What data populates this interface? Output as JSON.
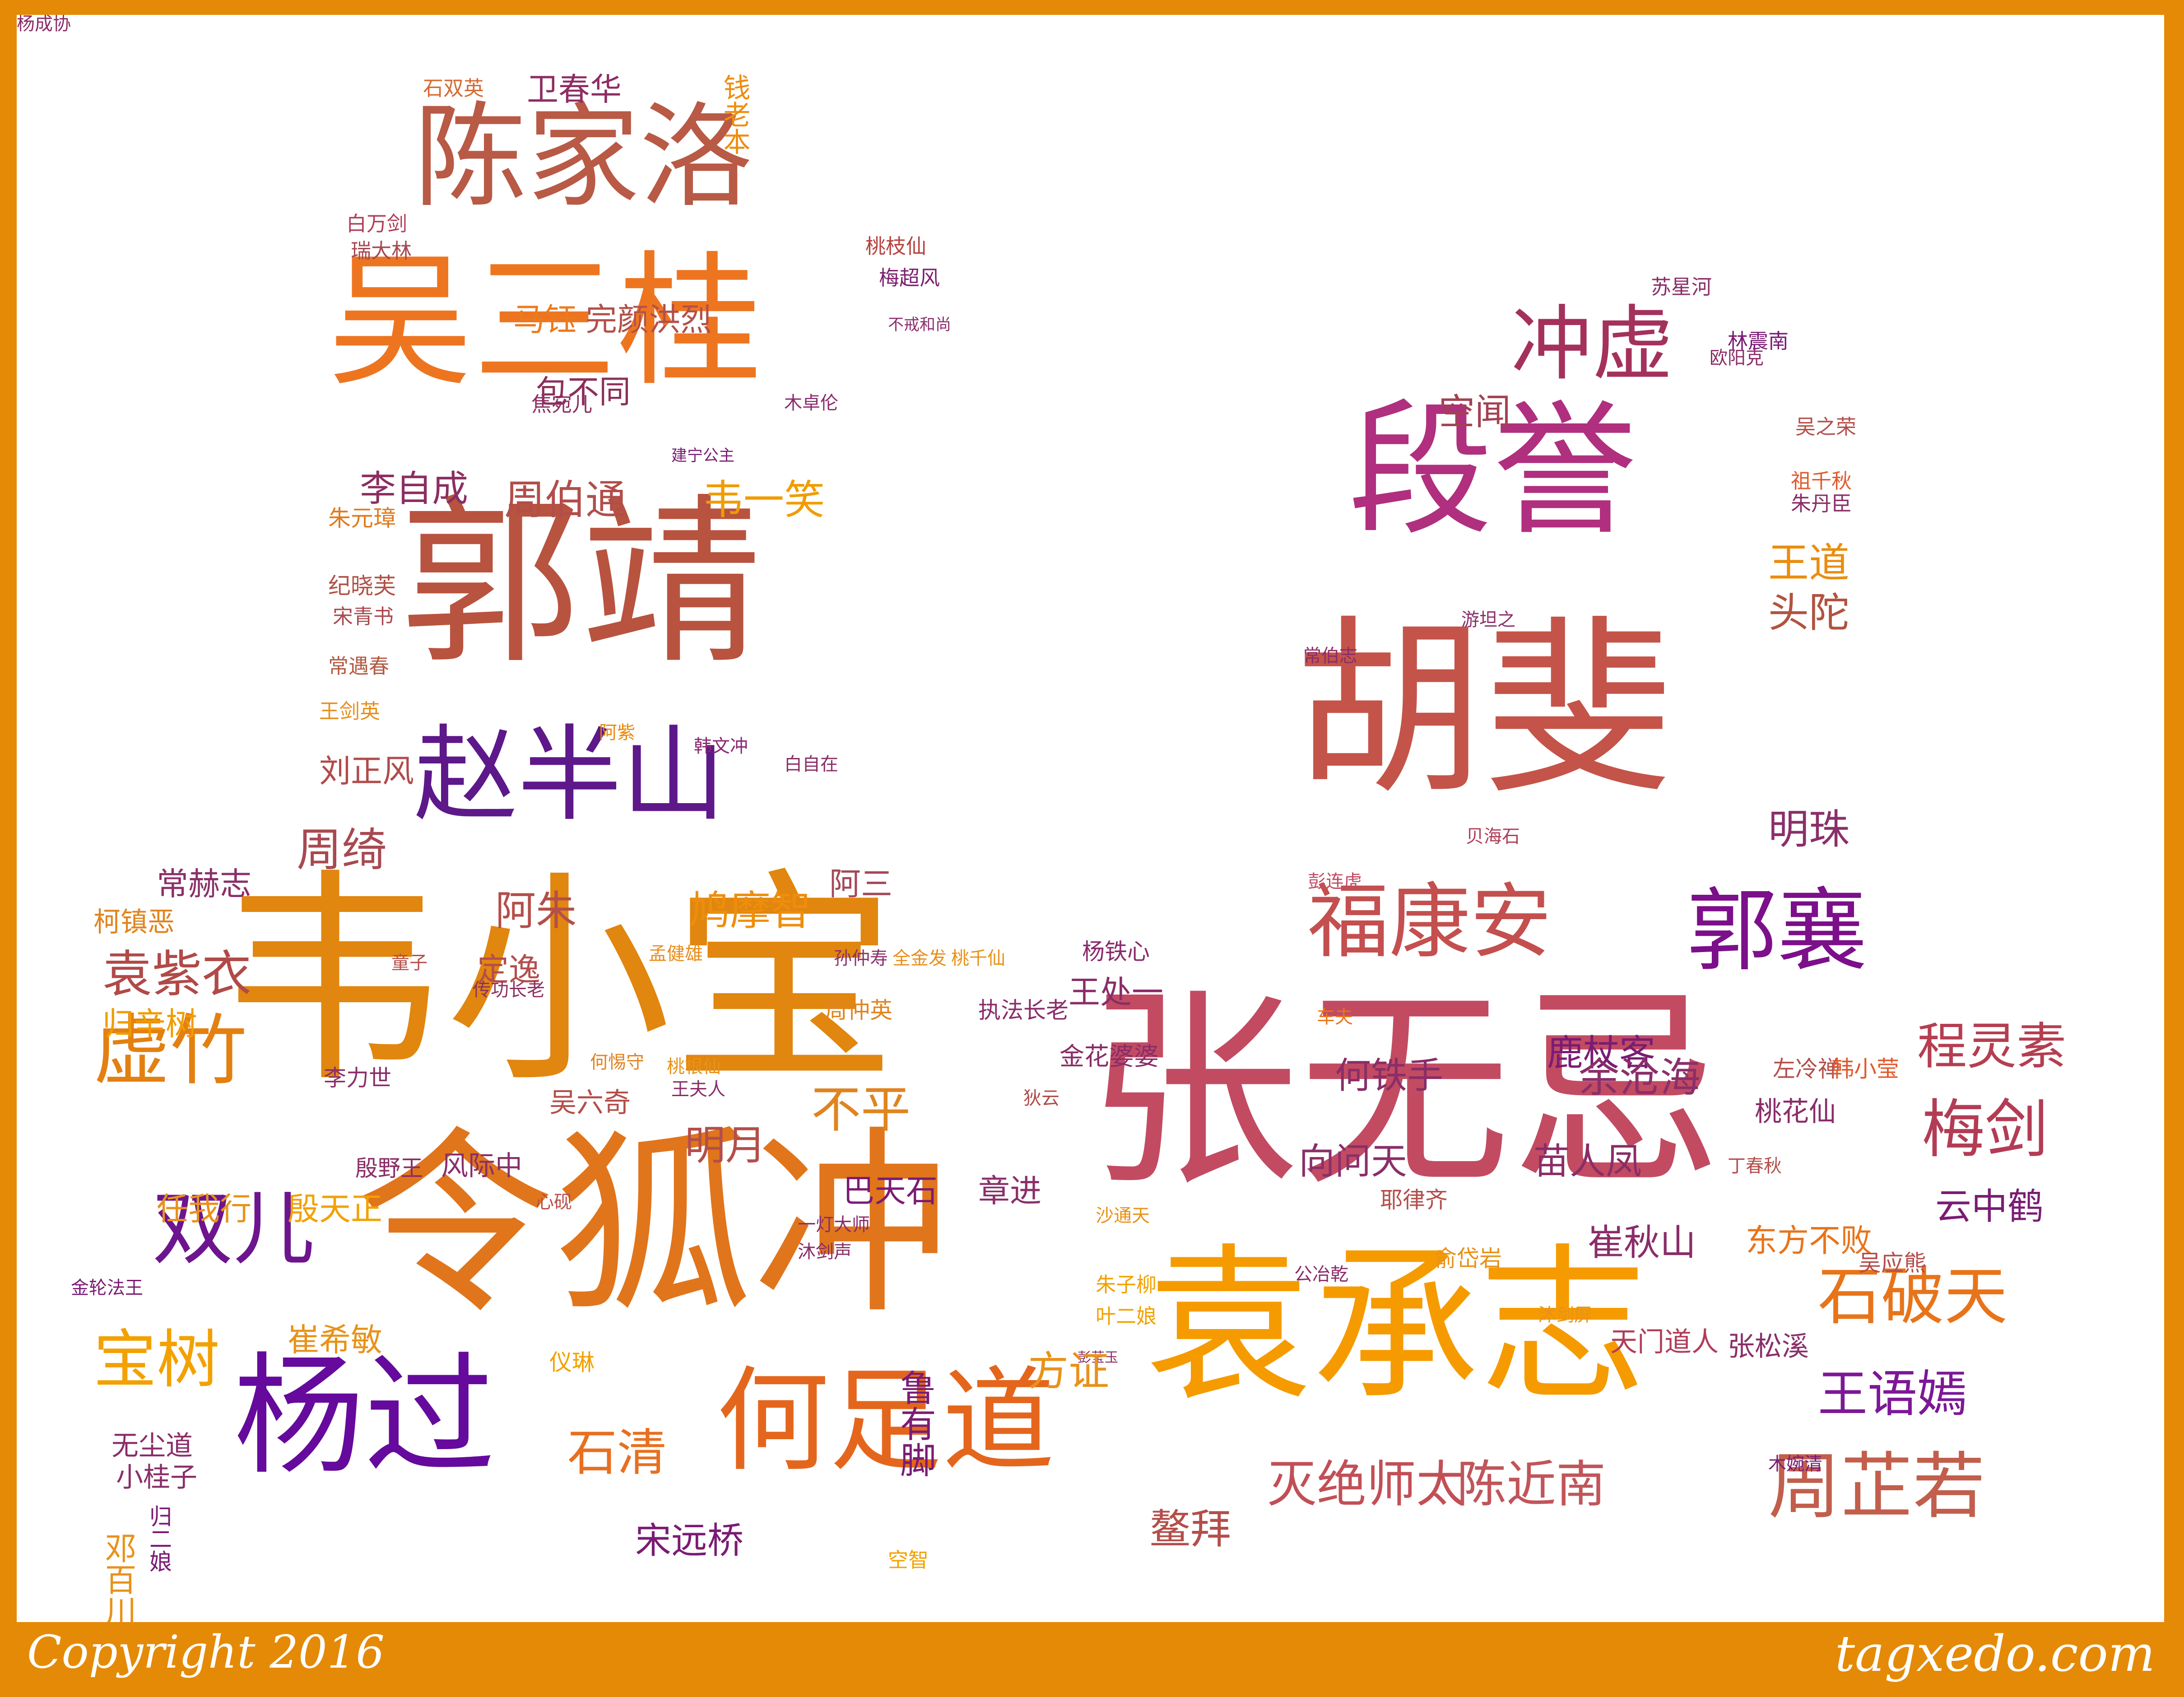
{
  "colors": {
    "frame": "#E48A07",
    "canvas": "#FFFFFF",
    "footer_text": "#FFFFFF"
  },
  "footer": {
    "copyright": "Copyright 2016",
    "brand": "tagxedo.com"
  },
  "words": [
    {
      "text": "韦小宝",
      "color": "#E1860E"
    },
    {
      "text": "张无忌",
      "color": "#C24B62"
    },
    {
      "text": "令狐冲",
      "color": "#E0751C"
    },
    {
      "text": "袁承志",
      "color": "#F59B00"
    },
    {
      "text": "胡斐",
      "color": "#C45449"
    },
    {
      "text": "郭靖",
      "color": "#B8533F"
    },
    {
      "text": "吴三桂",
      "color": "#EE7520"
    },
    {
      "text": "段誉",
      "color": "#B02F7E"
    },
    {
      "text": "陈家洛",
      "color": "#B85A45"
    },
    {
      "text": "杨过",
      "color": "#650A9C"
    },
    {
      "text": "何足道",
      "color": "#E4661D"
    },
    {
      "text": "赵半山",
      "color": "#5D188A"
    },
    {
      "text": "福康安",
      "color": "#C44F4F"
    },
    {
      "text": "郭襄",
      "color": "#7C0F8A"
    },
    {
      "text": "冲虚",
      "color": "#A4315C"
    },
    {
      "text": "双儿",
      "color": "#6D158E"
    },
    {
      "text": "虚竹",
      "color": "#E38011"
    },
    {
      "text": "周芷若",
      "color": "#C25E4C"
    },
    {
      "text": "石破天",
      "color": "#E8741A"
    },
    {
      "text": "梅剑",
      "color": "#B33C55"
    },
    {
      "text": "宝树",
      "color": "#F2A100"
    },
    {
      "text": "灭绝师太",
      "color": "#C24F56"
    },
    {
      "text": "陈近南",
      "color": "#C0555A"
    },
    {
      "text": "王语嫣",
      "color": "#7D1797"
    },
    {
      "text": "程灵素",
      "color": "#B53E51"
    },
    {
      "text": "石清",
      "color": "#E86F1F"
    },
    {
      "text": "周伯通",
      "color": "#B14E4A"
    },
    {
      "text": "李自成",
      "color": "#8B2E61"
    },
    {
      "text": "韦一笑",
      "color": "#F09C00"
    },
    {
      "text": "王道",
      "color": "#EA8D0E"
    },
    {
      "text": "头陀",
      "color": "#B05340"
    },
    {
      "text": "空闻",
      "color": "#A44152"
    },
    {
      "text": "马钰",
      "color": "#EB7B1D"
    },
    {
      "text": "完颜洪烈",
      "color": "#B2504A"
    },
    {
      "text": "包不同",
      "color": "#8C2F5A"
    },
    {
      "text": "卫春华",
      "color": "#8E2D63"
    },
    {
      "text": "钱老本",
      "color": "#EE8D0E"
    },
    {
      "text": "石双英",
      "color": "#D66A32"
    },
    {
      "text": "白万剑",
      "color": "#B03D58"
    },
    {
      "text": "瑞大林",
      "color": "#A54951"
    },
    {
      "text": "桃枝仙",
      "color": "#B6433F"
    },
    {
      "text": "梅超风",
      "color": "#7D1F6E"
    },
    {
      "text": "不戒和尚",
      "color": "#8C2F6E"
    },
    {
      "text": "焦宛儿",
      "color": "#8A2F60"
    },
    {
      "text": "木卓伦",
      "color": "#8A2B6C"
    },
    {
      "text": "建宁公主",
      "color": "#7A1C74"
    },
    {
      "text": "朱元璋",
      "color": "#E07A1C"
    },
    {
      "text": "纪晓芙",
      "color": "#B15348"
    },
    {
      "text": "宋青书",
      "color": "#A84950"
    },
    {
      "text": "常遇春",
      "color": "#B45A42"
    },
    {
      "text": "王剑英",
      "color": "#E88E1C"
    },
    {
      "text": "刘正风",
      "color": "#B24A4B"
    },
    {
      "text": "周绮",
      "color": "#A84950"
    },
    {
      "text": "阿紫",
      "color": "#E88A0C"
    },
    {
      "text": "韩文冲",
      "color": "#8A2772"
    },
    {
      "text": "白自在",
      "color": "#8A2D65"
    },
    {
      "text": "常赫志",
      "color": "#8A2F68"
    },
    {
      "text": "柯镇恶",
      "color": "#E08420"
    },
    {
      "text": "袁紫衣",
      "color": "#B04A48"
    },
    {
      "text": "阿朱",
      "color": "#B44E4A"
    },
    {
      "text": "鸠摩智",
      "color": "#EE8E0C"
    },
    {
      "text": "阿三",
      "color": "#A44859"
    },
    {
      "text": "定逸",
      "color": "#B44E4E"
    },
    {
      "text": "童子",
      "color": "#B44E4A"
    },
    {
      "text": "传功长老",
      "color": "#8E2F60"
    },
    {
      "text": "孟健雄",
      "color": "#E88E1C"
    },
    {
      "text": "孙仲寿",
      "color": "#8A2F6A"
    },
    {
      "text": "全金发",
      "color": "#E88E1C"
    },
    {
      "text": "桃千仙",
      "color": "#E8921A"
    },
    {
      "text": "杨铁心",
      "color": "#8A2B6C"
    },
    {
      "text": "王处一",
      "color": "#8A2D68"
    },
    {
      "text": "归辛树",
      "color": "#F09C00"
    },
    {
      "text": "周仲英",
      "color": "#E08420"
    },
    {
      "text": "执法长老",
      "color": "#8A2D68"
    },
    {
      "text": "金花婆婆",
      "color": "#8A2D68"
    },
    {
      "text": "何惕守",
      "color": "#E08420"
    },
    {
      "text": "桃根仙",
      "color": "#E8921A"
    },
    {
      "text": "王夫人",
      "color": "#8A2D68"
    },
    {
      "text": "李力世",
      "color": "#8A2F6A"
    },
    {
      "text": "吴六奇",
      "color": "#B44E4A"
    },
    {
      "text": "不平",
      "color": "#E08420"
    },
    {
      "text": "明月",
      "color": "#B44E4A"
    },
    {
      "text": "狄云",
      "color": "#B04A48"
    },
    {
      "text": "殷野王",
      "color": "#8A2D68"
    },
    {
      "text": "风际中",
      "color": "#8A2F6A"
    },
    {
      "text": "任我行",
      "color": "#E8921A"
    },
    {
      "text": "殷天正",
      "color": "#F2A100"
    },
    {
      "text": "心砚",
      "color": "#B44E4A"
    },
    {
      "text": "巴天石",
      "color": "#7A1C74"
    },
    {
      "text": "章进",
      "color": "#8A2F6A"
    },
    {
      "text": "一灯大师",
      "color": "#8A2D68"
    },
    {
      "text": "沙通天",
      "color": "#E8921A"
    },
    {
      "text": "沐剑声",
      "color": "#8A2D68"
    },
    {
      "text": "金轮法王",
      "color": "#7A1C74"
    },
    {
      "text": "朱子柳",
      "color": "#F2A100"
    },
    {
      "text": "叶二娘",
      "color": "#F2A100"
    },
    {
      "text": "崔希敏",
      "color": "#E8921A"
    },
    {
      "text": "仪琳",
      "color": "#F2A100"
    },
    {
      "text": "彭莹玉",
      "color": "#8A2F6A"
    },
    {
      "text": "鲁有脚",
      "color": "#7A1C74"
    },
    {
      "text": "方证",
      "color": "#E8921A"
    },
    {
      "text": "无尘道",
      "color": "#8A2D68"
    },
    {
      "text": "小桂子",
      "color": "#8A2F6A"
    },
    {
      "text": "归二娘",
      "color": "#7A1C74"
    },
    {
      "text": "邓百川",
      "color": "#E8921A"
    },
    {
      "text": "宋远桥",
      "color": "#7A1C74"
    },
    {
      "text": "鳌拜",
      "color": "#B44E4A"
    },
    {
      "text": "空智",
      "color": "#F2A100"
    },
    {
      "text": "苏星河",
      "color": "#8A2D68"
    },
    {
      "text": "林震南",
      "color": "#7A1C74"
    },
    {
      "text": "欧阳克",
      "color": "#8A2D68"
    },
    {
      "text": "吴之荣",
      "color": "#B44E4A"
    },
    {
      "text": "祖千秋",
      "color": "#E05A2C"
    },
    {
      "text": "朱丹臣",
      "color": "#8A2D68"
    },
    {
      "text": "游坦之",
      "color": "#8A2F6A"
    },
    {
      "text": "常伯志",
      "color": "#8A2D68"
    },
    {
      "text": "贝海石",
      "color": "#B03D58"
    },
    {
      "text": "彭连虎",
      "color": "#C24B62"
    },
    {
      "text": "鹿杖客",
      "color": "#7A1C74"
    },
    {
      "text": "明珠",
      "color": "#8A2F6A"
    },
    {
      "text": "车夫",
      "color": "#E8741A"
    },
    {
      "text": "何铁手",
      "color": "#8A2D68"
    },
    {
      "text": "余沧海",
      "color": "#8A2F6A"
    },
    {
      "text": "左冷禅",
      "color": "#B44E4A"
    },
    {
      "text": "韩小莹",
      "color": "#E05A2C"
    },
    {
      "text": "桃花仙",
      "color": "#8A2D68"
    },
    {
      "text": "向问天",
      "color": "#8A2F6A"
    },
    {
      "text": "苗人凤",
      "color": "#8A2D68"
    },
    {
      "text": "丁春秋",
      "color": "#B44E4A"
    },
    {
      "text": "耶律齐",
      "color": "#B44E4A"
    },
    {
      "text": "云中鹤",
      "color": "#7A1C74"
    },
    {
      "text": "俞岱岩",
      "color": "#E8921A"
    },
    {
      "text": "公冶乾",
      "color": "#8A2D68"
    },
    {
      "text": "崔秋山",
      "color": "#8A2D68"
    },
    {
      "text": "东方不败",
      "color": "#E8741A"
    },
    {
      "text": "吴应熊",
      "color": "#B44E4A"
    },
    {
      "text": "沐剑屏",
      "color": "#E8921A"
    },
    {
      "text": "天门道人",
      "color": "#B03D58"
    },
    {
      "text": "张松溪",
      "color": "#8A2F6A"
    },
    {
      "text": "木婉清",
      "color": "#7A1C74"
    },
    {
      "text": "杨成协",
      "color": "#8A2D68"
    }
  ]
}
